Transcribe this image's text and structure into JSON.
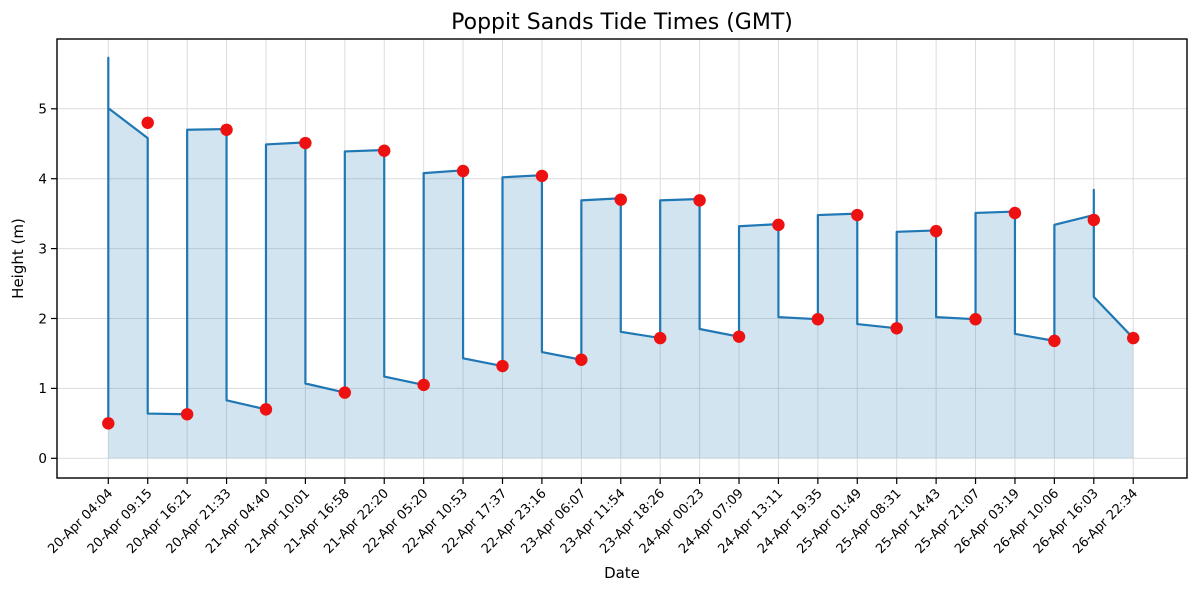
{
  "figure": {
    "title": "Poppit Sands Tide Times (GMT)",
    "xlabel": "Date",
    "ylabel": "Height (m)"
  },
  "chart_data": {
    "type": "line",
    "title": "Poppit Sands Tide Times (GMT)",
    "xlabel": "Date",
    "ylabel": "Height (m)",
    "grid": true,
    "legend_visible": false,
    "ylim": [
      -0.28,
      6.0
    ],
    "y_ticks": [
      0,
      1,
      2,
      3,
      4,
      5
    ],
    "line_color": "#1f77b4",
    "fill_color": "rgba(31,119,180,0.2)",
    "marker_color": "#ee1111",
    "events": [
      {
        "time": "20-Apr 04:04",
        "height": 0.5,
        "kind": "low"
      },
      {
        "time": "20-Apr 09:15",
        "height": 4.8,
        "kind": "high"
      },
      {
        "time": "20-Apr 16:21",
        "height": 0.63,
        "kind": "low"
      },
      {
        "time": "20-Apr 21:33",
        "height": 4.7,
        "kind": "high"
      },
      {
        "time": "21-Apr 04:40",
        "height": 0.7,
        "kind": "low"
      },
      {
        "time": "21-Apr 10:01",
        "height": 4.51,
        "kind": "high"
      },
      {
        "time": "21-Apr 16:58",
        "height": 0.94,
        "kind": "low"
      },
      {
        "time": "21-Apr 22:20",
        "height": 4.4,
        "kind": "high"
      },
      {
        "time": "22-Apr 05:20",
        "height": 1.05,
        "kind": "low"
      },
      {
        "time": "22-Apr 10:53",
        "height": 4.11,
        "kind": "high"
      },
      {
        "time": "22-Apr 17:37",
        "height": 1.32,
        "kind": "low"
      },
      {
        "time": "22-Apr 23:16",
        "height": 4.04,
        "kind": "high"
      },
      {
        "time": "23-Apr 06:07",
        "height": 1.41,
        "kind": "low"
      },
      {
        "time": "23-Apr 11:54",
        "height": 3.7,
        "kind": "high"
      },
      {
        "time": "23-Apr 18:26",
        "height": 1.72,
        "kind": "low"
      },
      {
        "time": "24-Apr 00:23",
        "height": 3.69,
        "kind": "high"
      },
      {
        "time": "24-Apr 07:09",
        "height": 1.74,
        "kind": "low"
      },
      {
        "time": "24-Apr 13:11",
        "height": 3.34,
        "kind": "high"
      },
      {
        "time": "24-Apr 19:35",
        "height": 1.99,
        "kind": "low"
      },
      {
        "time": "25-Apr 01:49",
        "height": 3.48,
        "kind": "high"
      },
      {
        "time": "25-Apr 08:31",
        "height": 1.86,
        "kind": "low"
      },
      {
        "time": "25-Apr 14:43",
        "height": 3.25,
        "kind": "high"
      },
      {
        "time": "25-Apr 21:07",
        "height": 1.99,
        "kind": "low"
      },
      {
        "time": "26-Apr 03:19",
        "height": 3.51,
        "kind": "high"
      },
      {
        "time": "26-Apr 10:06",
        "height": 1.68,
        "kind": "low"
      },
      {
        "time": "26-Apr 16:03",
        "height": 3.41,
        "kind": "high"
      },
      {
        "time": "26-Apr 22:34",
        "height": 1.72,
        "kind": "low"
      }
    ],
    "line_vertices": [
      [
        1,
        0.5
      ],
      [
        1,
        5.73
      ],
      [
        1,
        5.01
      ],
      [
        2,
        4.58
      ],
      [
        2,
        0.64
      ],
      [
        3,
        0.63
      ],
      [
        3,
        4.7
      ],
      [
        4,
        4.71
      ],
      [
        4,
        0.83
      ],
      [
        5,
        0.7
      ],
      [
        5,
        4.49
      ],
      [
        6,
        4.52
      ],
      [
        6,
        1.07
      ],
      [
        7,
        0.94
      ],
      [
        7,
        4.39
      ],
      [
        8,
        4.41
      ],
      [
        8,
        1.17
      ],
      [
        9,
        1.05
      ],
      [
        9,
        4.08
      ],
      [
        10,
        4.12
      ],
      [
        10,
        1.43
      ],
      [
        11,
        1.32
      ],
      [
        11,
        4.02
      ],
      [
        12,
        4.05
      ],
      [
        12,
        1.52
      ],
      [
        13,
        1.41
      ],
      [
        13,
        3.69
      ],
      [
        14,
        3.72
      ],
      [
        14,
        1.81
      ],
      [
        15,
        1.72
      ],
      [
        15,
        3.69
      ],
      [
        16,
        3.71
      ],
      [
        16,
        1.85
      ],
      [
        17,
        1.74
      ],
      [
        17,
        3.32
      ],
      [
        18,
        3.35
      ],
      [
        18,
        2.02
      ],
      [
        19,
        1.99
      ],
      [
        19,
        3.48
      ],
      [
        20,
        3.5
      ],
      [
        20,
        1.92
      ],
      [
        21,
        1.86
      ],
      [
        21,
        3.24
      ],
      [
        22,
        3.26
      ],
      [
        22,
        2.02
      ],
      [
        23,
        1.99
      ],
      [
        23,
        3.51
      ],
      [
        24,
        3.53
      ],
      [
        24,
        1.78
      ],
      [
        25,
        1.68
      ],
      [
        25,
        3.34
      ],
      [
        26,
        3.48
      ],
      [
        26,
        3.84
      ],
      [
        26,
        2.31
      ],
      [
        27,
        1.72
      ]
    ],
    "fill_skip_vertex_indexes": [
      1,
      52
    ]
  }
}
